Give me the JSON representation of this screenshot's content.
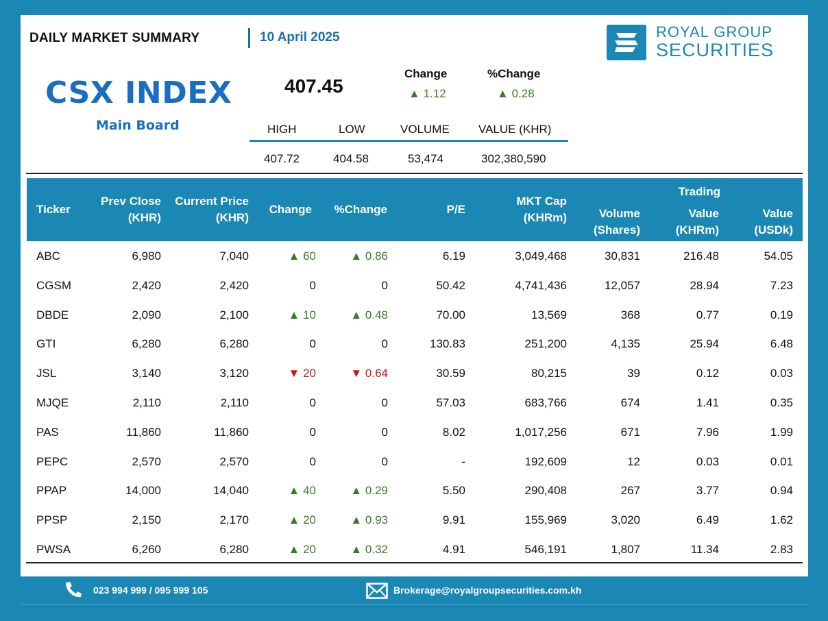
{
  "header": {
    "title": "DAILY MARKET SUMMARY",
    "date": "10 April 2025",
    "brand_line1": "ROYAL GROUP",
    "brand_line2": "SECURITIES"
  },
  "index": {
    "name": "CSX INDEX",
    "board": "Main Board",
    "value": "407.45",
    "change_label": "Change",
    "pct_change_label": "%Change",
    "change": "1.12",
    "pct_change": "0.28",
    "stats_headers": [
      "HIGH",
      "LOW",
      "VOLUME",
      "VALUE (KHR)"
    ],
    "stats_values": [
      "407.72",
      "404.58",
      "53,474",
      "302,380,590"
    ]
  },
  "table": {
    "headers": {
      "ticker": "Ticker",
      "prev_close_1": "Prev Close",
      "prev_close_2": "(KHR)",
      "current_1": "Current Price",
      "current_2": "(KHR)",
      "change": "Change",
      "pct_change": "%Change",
      "pe": "P/E",
      "mktcap_1": "MKT Cap",
      "mktcap_2": "(KHRm)",
      "volume_1": "Volume",
      "volume_2": "(Shares)",
      "trading": "Trading",
      "value_khr_1": "Value",
      "value_khr_2": "(KHRm)",
      "value_usd_1": "Value",
      "value_usd_2": "(USDk)"
    },
    "rows": [
      {
        "ticker": "ABC",
        "prev": "6,980",
        "cur": "7,040",
        "dir": "up",
        "chg": "60",
        "pct": "0.86",
        "pe": "6.19",
        "mkt": "3,049,468",
        "vol": "30,831",
        "val_khr": "216.48",
        "val_usd": "54.05"
      },
      {
        "ticker": "CGSM",
        "prev": "2,420",
        "cur": "2,420",
        "dir": "flat",
        "chg": "0",
        "pct": "0",
        "pe": "50.42",
        "mkt": "4,741,436",
        "vol": "12,057",
        "val_khr": "28.94",
        "val_usd": "7.23"
      },
      {
        "ticker": "DBDE",
        "prev": "2,090",
        "cur": "2,100",
        "dir": "up",
        "chg": "10",
        "pct": "0.48",
        "pe": "70.00",
        "mkt": "13,569",
        "vol": "368",
        "val_khr": "0.77",
        "val_usd": "0.19"
      },
      {
        "ticker": "GTI",
        "prev": "6,280",
        "cur": "6,280",
        "dir": "flat",
        "chg": "0",
        "pct": "0",
        "pe": "130.83",
        "mkt": "251,200",
        "vol": "4,135",
        "val_khr": "25.94",
        "val_usd": "6.48"
      },
      {
        "ticker": "JSL",
        "prev": "3,140",
        "cur": "3,120",
        "dir": "down",
        "chg": "20",
        "pct": "0.64",
        "pe": "30.59",
        "mkt": "80,215",
        "vol": "39",
        "val_khr": "0.12",
        "val_usd": "0.03"
      },
      {
        "ticker": "MJQE",
        "prev": "2,110",
        "cur": "2,110",
        "dir": "flat",
        "chg": "0",
        "pct": "0",
        "pe": "57.03",
        "mkt": "683,766",
        "vol": "674",
        "val_khr": "1.41",
        "val_usd": "0.35"
      },
      {
        "ticker": "PAS",
        "prev": "11,860",
        "cur": "11,860",
        "dir": "flat",
        "chg": "0",
        "pct": "0",
        "pe": "8.02",
        "mkt": "1,017,256",
        "vol": "671",
        "val_khr": "7.96",
        "val_usd": "1.99"
      },
      {
        "ticker": "PEPC",
        "prev": "2,570",
        "cur": "2,570",
        "dir": "flat",
        "chg": "0",
        "pct": "0",
        "pe": "-",
        "mkt": "192,609",
        "vol": "12",
        "val_khr": "0.03",
        "val_usd": "0.01"
      },
      {
        "ticker": "PPAP",
        "prev": "14,000",
        "cur": "14,040",
        "dir": "up",
        "chg": "40",
        "pct": "0.29",
        "pe": "5.50",
        "mkt": "290,408",
        "vol": "267",
        "val_khr": "3.77",
        "val_usd": "0.94"
      },
      {
        "ticker": "PPSP",
        "prev": "2,150",
        "cur": "2,170",
        "dir": "up",
        "chg": "20",
        "pct": "0.93",
        "pe": "9.91",
        "mkt": "155,969",
        "vol": "3,020",
        "val_khr": "6.49",
        "val_usd": "1.62"
      },
      {
        "ticker": "PWSA",
        "prev": "6,260",
        "cur": "6,280",
        "dir": "up",
        "chg": "20",
        "pct": "0.32",
        "pe": "4.91",
        "mkt": "546,191",
        "vol": "1,807",
        "val_khr": "11.34",
        "val_usd": "2.83"
      }
    ]
  },
  "footer": {
    "phone": "023 994 999 / 095 999 105",
    "email": "Brokerage@royalgroupsecurities.com.kh",
    "phone_icon": "phone-icon",
    "email_icon": "envelope-icon"
  },
  "colors": {
    "brand": "#1a87b4",
    "index_blue": "#1a6ec2",
    "up": "#3a7a2a",
    "down": "#c31818"
  }
}
